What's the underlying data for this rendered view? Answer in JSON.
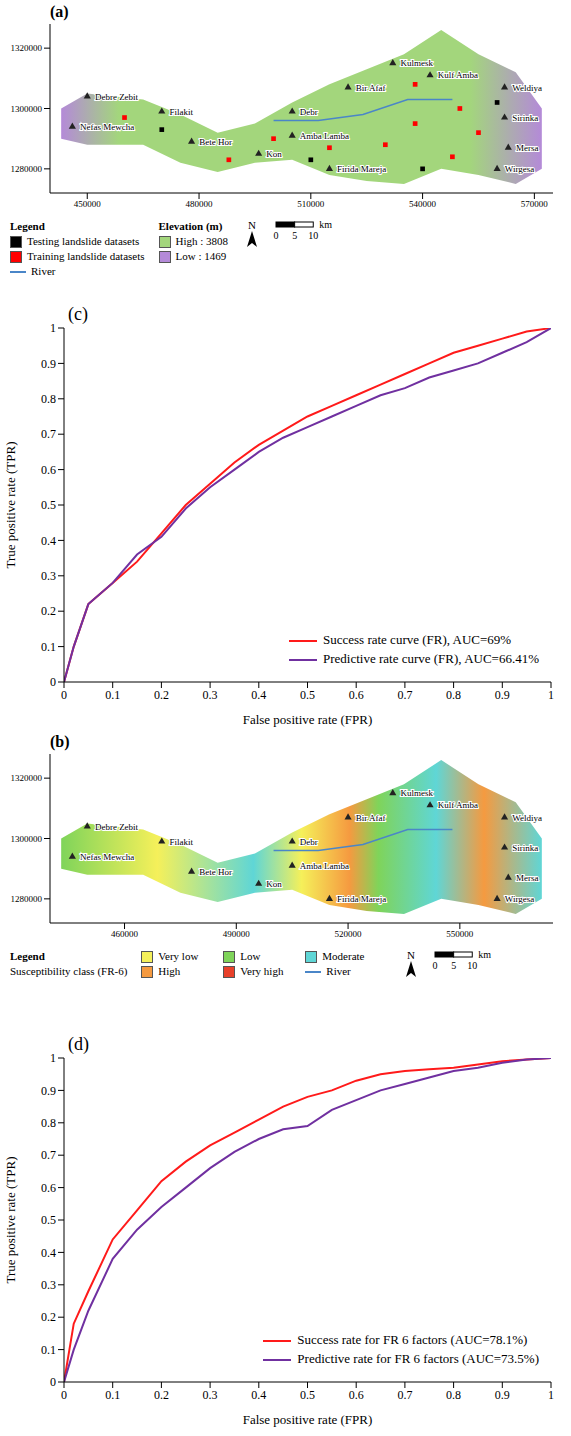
{
  "chart_data": [
    {
      "type": "map",
      "panel_label": "(a)",
      "north": "N",
      "xlim": [
        440000,
        575000
      ],
      "xticks": [
        450000,
        480000,
        510000,
        540000,
        570000
      ],
      "ylim": [
        1272000,
        1328000
      ],
      "yticks": [
        1280000,
        1300000,
        1320000
      ],
      "region": {
        "x": [
          443000,
          450000,
          465000,
          475000,
          485000,
          495000,
          505000,
          515000,
          525000,
          535000,
          545000,
          555000,
          565000,
          572000
        ],
        "north": [
          1300000,
          1305000,
          1303000,
          1298000,
          1292000,
          1295000,
          1302000,
          1308000,
          1313000,
          1318000,
          1326000,
          1318000,
          1312000,
          1300000
        ],
        "south": [
          1290000,
          1288000,
          1288000,
          1282000,
          1279000,
          1282000,
          1283000,
          1278000,
          1276000,
          1275000,
          1280000,
          1278000,
          1275000,
          1280000
        ]
      },
      "river": {
        "name": "River",
        "color": "#4a86c8",
        "x": [
          500000,
          512000,
          524000,
          536000,
          548000
        ],
        "y": [
          1296000,
          1296000,
          1298000,
          1303000,
          1303000
        ]
      },
      "series": [
        {
          "name": "Testing landslide datasets",
          "color": "#000000",
          "type": "scatter",
          "marker": "square",
          "x": [
            470000,
            510000,
            540000,
            560000
          ],
          "y": [
            1293000,
            1283000,
            1280000,
            1302000
          ]
        },
        {
          "name": "Training landslide datasets",
          "color": "#ff0000",
          "type": "scatter",
          "marker": "square",
          "x": [
            460000,
            488000,
            500000,
            515000,
            530000,
            538000,
            550000,
            555000,
            538000,
            548000
          ],
          "y": [
            1297000,
            1283000,
            1290000,
            1287000,
            1288000,
            1295000,
            1300000,
            1292000,
            1308000,
            1284000
          ]
        }
      ],
      "towns": {
        "names": [
          "Nefas Mewcha",
          "Debre Zebit",
          "Filakit",
          "Bete Hor",
          "Kon",
          "Debr",
          "Amba Lamba",
          "Firida Mareja",
          "Bir Afaf",
          "Kulmesk",
          "Kulf Amba",
          "Weldiya",
          "Sirinka",
          "Mersa",
          "Wirgesa"
        ],
        "x": [
          446000,
          450000,
          470000,
          478000,
          496000,
          505000,
          505000,
          515000,
          520000,
          532000,
          542000,
          562000,
          562000,
          563000,
          560000
        ],
        "y": [
          1294000,
          1304000,
          1299000,
          1289000,
          1285000,
          1299000,
          1291000,
          1280000,
          1307000,
          1315000,
          1311000,
          1307000,
          1297000,
          1287000,
          1280000
        ]
      },
      "legend_title": "Legend",
      "color_scale": {
        "title": "Elevation (m)",
        "labels": [
          "High : 3808",
          "Low : 1469"
        ],
        "colors": [
          "#a3d67c",
          "#b48ad8"
        ]
      },
      "scale_bar": {
        "unit": "km",
        "ticks": [
          0,
          5,
          10
        ]
      },
      "legend": "bottom"
    },
    {
      "type": "line",
      "panel_label": "(c)",
      "x_label": "False positive rate (FPR)",
      "y_label": "True positive rate (TPR)",
      "xlim": [
        0,
        1
      ],
      "xticks": [
        0,
        0.1,
        0.2,
        0.3,
        0.4,
        0.5,
        0.6,
        0.7,
        0.8,
        0.9,
        1
      ],
      "ylim": [
        0,
        1
      ],
      "yticks": [
        0,
        0.1,
        0.2,
        0.3,
        0.4,
        0.5,
        0.6,
        0.7,
        0.8,
        0.9,
        1
      ],
      "x": [
        0,
        0.02,
        0.05,
        0.1,
        0.15,
        0.2,
        0.25,
        0.3,
        0.35,
        0.4,
        0.45,
        0.5,
        0.55,
        0.6,
        0.65,
        0.7,
        0.75,
        0.8,
        0.85,
        0.9,
        0.95,
        1
      ],
      "series": [
        {
          "name": "Success rate curve (FR), AUC=69%",
          "color": "#ff1a1a",
          "values": [
            0,
            0.1,
            0.22,
            0.28,
            0.34,
            0.42,
            0.5,
            0.56,
            0.62,
            0.67,
            0.71,
            0.75,
            0.78,
            0.81,
            0.84,
            0.87,
            0.9,
            0.93,
            0.95,
            0.97,
            0.99,
            1
          ]
        },
        {
          "name": "Predictive rate curve (FR), AUC=66.41%",
          "color": "#7030a0",
          "values": [
            0,
            0.1,
            0.22,
            0.28,
            0.36,
            0.41,
            0.49,
            0.55,
            0.6,
            0.65,
            0.69,
            0.72,
            0.75,
            0.78,
            0.81,
            0.83,
            0.86,
            0.88,
            0.9,
            0.93,
            0.96,
            1
          ]
        }
      ],
      "legend": "lower right"
    },
    {
      "type": "map",
      "panel_label": "(b)",
      "north": "N",
      "xlim": [
        440000,
        575000
      ],
      "xticks": [
        460000,
        490000,
        520000,
        550000
      ],
      "ylim": [
        1272000,
        1328000
      ],
      "yticks": [
        1280000,
        1300000,
        1320000
      ],
      "region": {
        "x": [
          443000,
          450000,
          465000,
          475000,
          485000,
          495000,
          505000,
          515000,
          525000,
          535000,
          545000,
          555000,
          565000,
          572000
        ],
        "north": [
          1300000,
          1305000,
          1303000,
          1298000,
          1292000,
          1295000,
          1302000,
          1308000,
          1313000,
          1318000,
          1326000,
          1318000,
          1312000,
          1300000
        ],
        "south": [
          1290000,
          1288000,
          1288000,
          1282000,
          1279000,
          1282000,
          1283000,
          1278000,
          1276000,
          1275000,
          1280000,
          1278000,
          1275000,
          1280000
        ]
      },
      "river": {
        "name": "River",
        "color": "#4a86c8",
        "x": [
          500000,
          512000,
          524000,
          536000,
          548000
        ],
        "y": [
          1296000,
          1296000,
          1298000,
          1303000,
          1303000
        ]
      },
      "towns": {
        "names": [
          "Nefas Mewcha",
          "Debre Zebit",
          "Filakit",
          "Bete Hor",
          "Kon",
          "Debr",
          "Amba Lamba",
          "Firida Mareja",
          "Bir Afaf",
          "Kulmesk",
          "Kulf Amba",
          "Weldiya",
          "Sirinka",
          "Mersa",
          "Wirgesa"
        ],
        "x": [
          446000,
          450000,
          470000,
          478000,
          496000,
          505000,
          505000,
          515000,
          520000,
          532000,
          542000,
          562000,
          562000,
          563000,
          560000
        ],
        "y": [
          1294000,
          1304000,
          1299000,
          1289000,
          1285000,
          1299000,
          1291000,
          1280000,
          1307000,
          1315000,
          1311000,
          1307000,
          1297000,
          1287000,
          1280000
        ]
      },
      "legend_title": "Legend",
      "class_title": "Susceptibility class (FR-6)",
      "classes": [
        {
          "name": "Very low",
          "color": "#f5f05a"
        },
        {
          "name": "Low",
          "color": "#7fd45a"
        },
        {
          "name": "Moderate",
          "color": "#5fd6d6"
        },
        {
          "name": "High",
          "color": "#f59a40"
        },
        {
          "name": "Very high",
          "color": "#e8402a"
        }
      ],
      "scale_bar": {
        "unit": "km",
        "ticks": [
          0,
          5,
          10
        ]
      },
      "legend": "bottom"
    },
    {
      "type": "line",
      "panel_label": "(d)",
      "x_label": "False positive rate (FPR)",
      "y_label": "True positive rate (TPR)",
      "xlim": [
        0,
        1
      ],
      "xticks": [
        0,
        0.1,
        0.2,
        0.3,
        0.4,
        0.5,
        0.6,
        0.7,
        0.8,
        0.9,
        1
      ],
      "ylim": [
        0,
        1
      ],
      "yticks": [
        0,
        0.1,
        0.2,
        0.3,
        0.4,
        0.5,
        0.6,
        0.7,
        0.8,
        0.9,
        1
      ],
      "x": [
        0,
        0.02,
        0.05,
        0.1,
        0.15,
        0.2,
        0.25,
        0.3,
        0.35,
        0.4,
        0.45,
        0.5,
        0.55,
        0.6,
        0.65,
        0.7,
        0.75,
        0.8,
        0.85,
        0.9,
        0.95,
        1
      ],
      "series": [
        {
          "name": "Success rate for FR 6 factors (AUC=78.1%)",
          "color": "#ff1a1a",
          "values": [
            0,
            0.18,
            0.28,
            0.44,
            0.53,
            0.62,
            0.68,
            0.73,
            0.77,
            0.81,
            0.85,
            0.88,
            0.9,
            0.93,
            0.95,
            0.96,
            0.965,
            0.97,
            0.98,
            0.99,
            0.995,
            1
          ]
        },
        {
          "name": "Predictive rate for FR 6 factors (AUC=73.5%)",
          "color": "#7030a0",
          "values": [
            0,
            0.1,
            0.22,
            0.38,
            0.47,
            0.54,
            0.6,
            0.66,
            0.71,
            0.75,
            0.78,
            0.79,
            0.84,
            0.87,
            0.9,
            0.92,
            0.94,
            0.96,
            0.97,
            0.985,
            0.995,
            1
          ]
        }
      ],
      "legend": "lower right"
    }
  ]
}
